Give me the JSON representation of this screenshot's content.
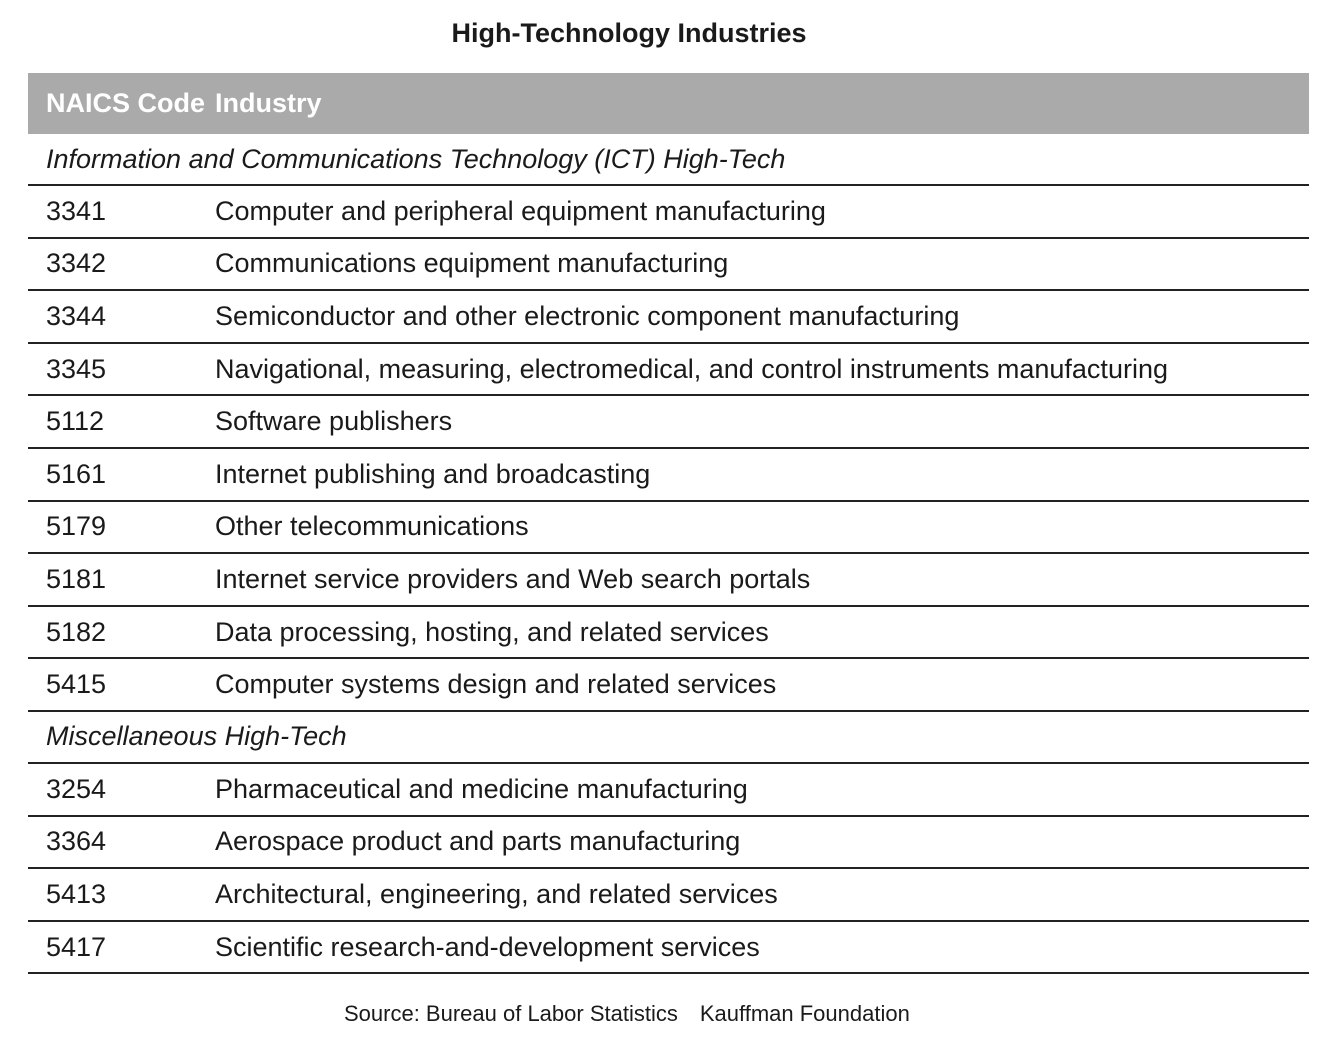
{
  "title": "High-Technology Industries",
  "header": {
    "code_label": "NAICS Code",
    "industry_label": "Industry"
  },
  "sections": [
    {
      "label": "Information and Communications Technology (ICT) High-Tech",
      "rows": [
        {
          "code": "3341",
          "industry": "Computer and peripheral equipment manufacturing"
        },
        {
          "code": "3342",
          "industry": "Communications equipment manufacturing"
        },
        {
          "code": "3344",
          "industry": "Semiconductor and other electronic component manufacturing"
        },
        {
          "code": "3345",
          "industry": "Navigational, measuring, electromedical, and control instruments manufacturing"
        },
        {
          "code": "5112",
          "industry": "Software publishers"
        },
        {
          "code": "5161",
          "industry": "Internet publishing and broadcasting"
        },
        {
          "code": "5179",
          "industry": "Other telecommunications"
        },
        {
          "code": "5181",
          "industry": "Internet service providers and Web search portals"
        },
        {
          "code": "5182",
          "industry": "Data processing, hosting, and related services"
        },
        {
          "code": "5415",
          "industry": "Computer systems design and related services"
        }
      ]
    },
    {
      "label": "Miscellaneous High-Tech",
      "rows": [
        {
          "code": "3254",
          "industry": "Pharmaceutical and medicine manufacturing"
        },
        {
          "code": "3364",
          "industry": "Aerospace product and parts manufacturing"
        },
        {
          "code": "5413",
          "industry": "Architectural, engineering, and related services"
        },
        {
          "code": "5417",
          "industry": "Scientific research-and-development services"
        }
      ]
    }
  ],
  "source": {
    "left": "Source: Bureau of Labor Statistics",
    "right": "Kauffman Foundation"
  }
}
